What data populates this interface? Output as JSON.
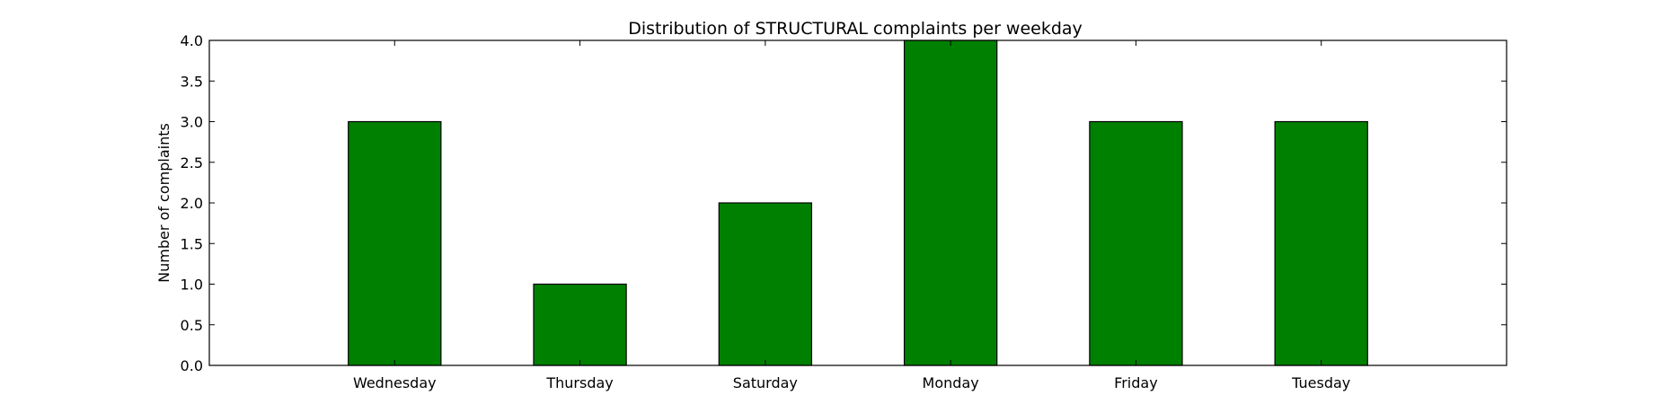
{
  "chart_data": {
    "type": "bar",
    "title": "Distribution of  STRUCTURAL complaints per weekday",
    "xlabel": "",
    "ylabel": "Number of complaints",
    "categories": [
      "Wednesday",
      "Thursday",
      "Saturday",
      "Monday",
      "Friday",
      "Tuesday"
    ],
    "values": [
      3,
      1,
      2,
      4,
      3,
      3
    ],
    "ylim": [
      0,
      4.0
    ],
    "yticks": [
      "0.0",
      "0.5",
      "1.0",
      "1.5",
      "2.0",
      "2.5",
      "3.0",
      "3.5",
      "4.0"
    ],
    "grid": false,
    "legend": "none",
    "bar_color": "#008000",
    "edge_color": "#000000"
  }
}
